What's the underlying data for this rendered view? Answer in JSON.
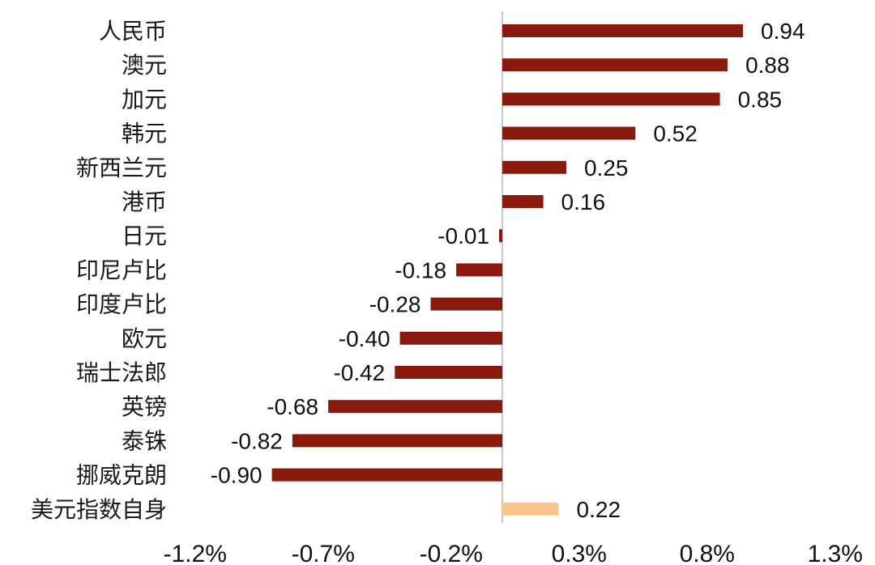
{
  "chart_data": {
    "type": "bar",
    "orientation": "horizontal",
    "categories": [
      "人民币",
      "澳元",
      "加元",
      "韩元",
      "新西兰元",
      "港币",
      "日元",
      "印尼卢比",
      "印度卢比",
      "欧元",
      "瑞士法郎",
      "英镑",
      "泰铢",
      "挪威克朗",
      "美元指数自身"
    ],
    "values": [
      0.94,
      0.88,
      0.85,
      0.52,
      0.25,
      0.16,
      -0.01,
      -0.18,
      -0.28,
      -0.4,
      -0.42,
      -0.68,
      -0.82,
      -0.9,
      0.22
    ],
    "value_labels": [
      "0.94",
      "0.88",
      "0.85",
      "0.52",
      "0.25",
      "0.16",
      "-0.01",
      "-0.18",
      "-0.28",
      "-0.40",
      "-0.42",
      "-0.68",
      "-0.82",
      "-0.90",
      "0.22"
    ],
    "bar_colors": [
      "#8b1a0e",
      "#8b1a0e",
      "#8b1a0e",
      "#8b1a0e",
      "#8b1a0e",
      "#8b1a0e",
      "#8b1a0e",
      "#8b1a0e",
      "#8b1a0e",
      "#8b1a0e",
      "#8b1a0e",
      "#8b1a0e",
      "#8b1a0e",
      "#8b1a0e",
      "#f9c68c"
    ],
    "xaxis": {
      "ticks": [
        -1.2,
        -0.7,
        -0.2,
        0.3,
        0.8,
        1.3
      ],
      "tick_labels": [
        "-1.2%",
        "-0.7%",
        "-0.2%",
        "0.3%",
        "0.8%",
        "1.3%"
      ],
      "range": [
        -1.2,
        1.3
      ]
    },
    "zero_line_color": "#c8c8c8",
    "grid": false,
    "legend": "none"
  }
}
